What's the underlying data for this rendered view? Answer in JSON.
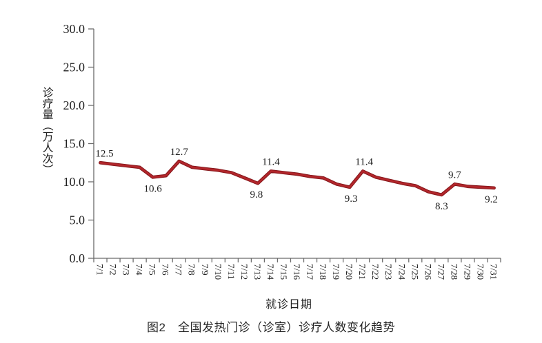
{
  "chart_data": {
    "type": "line",
    "title": "图2　全国发热门诊（诊室）诊疗人数变化趋势",
    "xlabel": "就诊日期",
    "ylabel": "诊疗量（万人次）",
    "categories": [
      "7/1",
      "7/2",
      "7/3",
      "7/4",
      "7/5",
      "7/6",
      "7/7",
      "7/8",
      "7/9",
      "7/10",
      "7/11",
      "7/12",
      "7/13",
      "7/14",
      "7/15",
      "7/16",
      "7/17",
      "7/18",
      "7/19",
      "7/20",
      "7/21",
      "7/22",
      "7/23",
      "7/24",
      "7/25",
      "7/26",
      "7/27",
      "7/28",
      "7/29",
      "7/30",
      "7/31"
    ],
    "series": [
      {
        "values": [
          12.5,
          12.3,
          12.1,
          11.9,
          10.6,
          10.8,
          12.7,
          11.9,
          11.7,
          11.5,
          11.2,
          10.5,
          9.8,
          11.4,
          11.2,
          11.0,
          10.7,
          10.5,
          9.7,
          9.3,
          11.4,
          10.6,
          10.2,
          9.8,
          9.5,
          8.7,
          8.3,
          9.7,
          9.4,
          9.3,
          9.2
        ],
        "color": "#B2262B",
        "border_color": "#85171B"
      }
    ],
    "point_labels": [
      {
        "index": 0,
        "text": "12.5",
        "position": "above",
        "dx": 6
      },
      {
        "index": 4,
        "text": "10.6",
        "position": "below",
        "dx": 0
      },
      {
        "index": 6,
        "text": "12.7",
        "position": "above",
        "dx": 0
      },
      {
        "index": 12,
        "text": "9.8",
        "position": "below",
        "dx": -2
      },
      {
        "index": 13,
        "text": "11.4",
        "position": "above",
        "dx": 0
      },
      {
        "index": 19,
        "text": "9.3",
        "position": "below",
        "dx": 2
      },
      {
        "index": 20,
        "text": "11.4",
        "position": "above",
        "dx": 2
      },
      {
        "index": 26,
        "text": "8.3",
        "position": "below",
        "dx": 0
      },
      {
        "index": 27,
        "text": "9.7",
        "position": "above",
        "dx": 0
      },
      {
        "index": 30,
        "text": "9.2",
        "position": "below",
        "dx": -4
      }
    ],
    "y_axis": {
      "min": 0,
      "max": 30,
      "tick_step": 5,
      "tick_labels": [
        "0.0",
        "5.0",
        "10.0",
        "15.0",
        "20.0",
        "25.0",
        "30.0"
      ]
    },
    "axis_color": "#6b6b6b",
    "text_color": "#1f1f1f",
    "grid": false,
    "legend": false
  }
}
